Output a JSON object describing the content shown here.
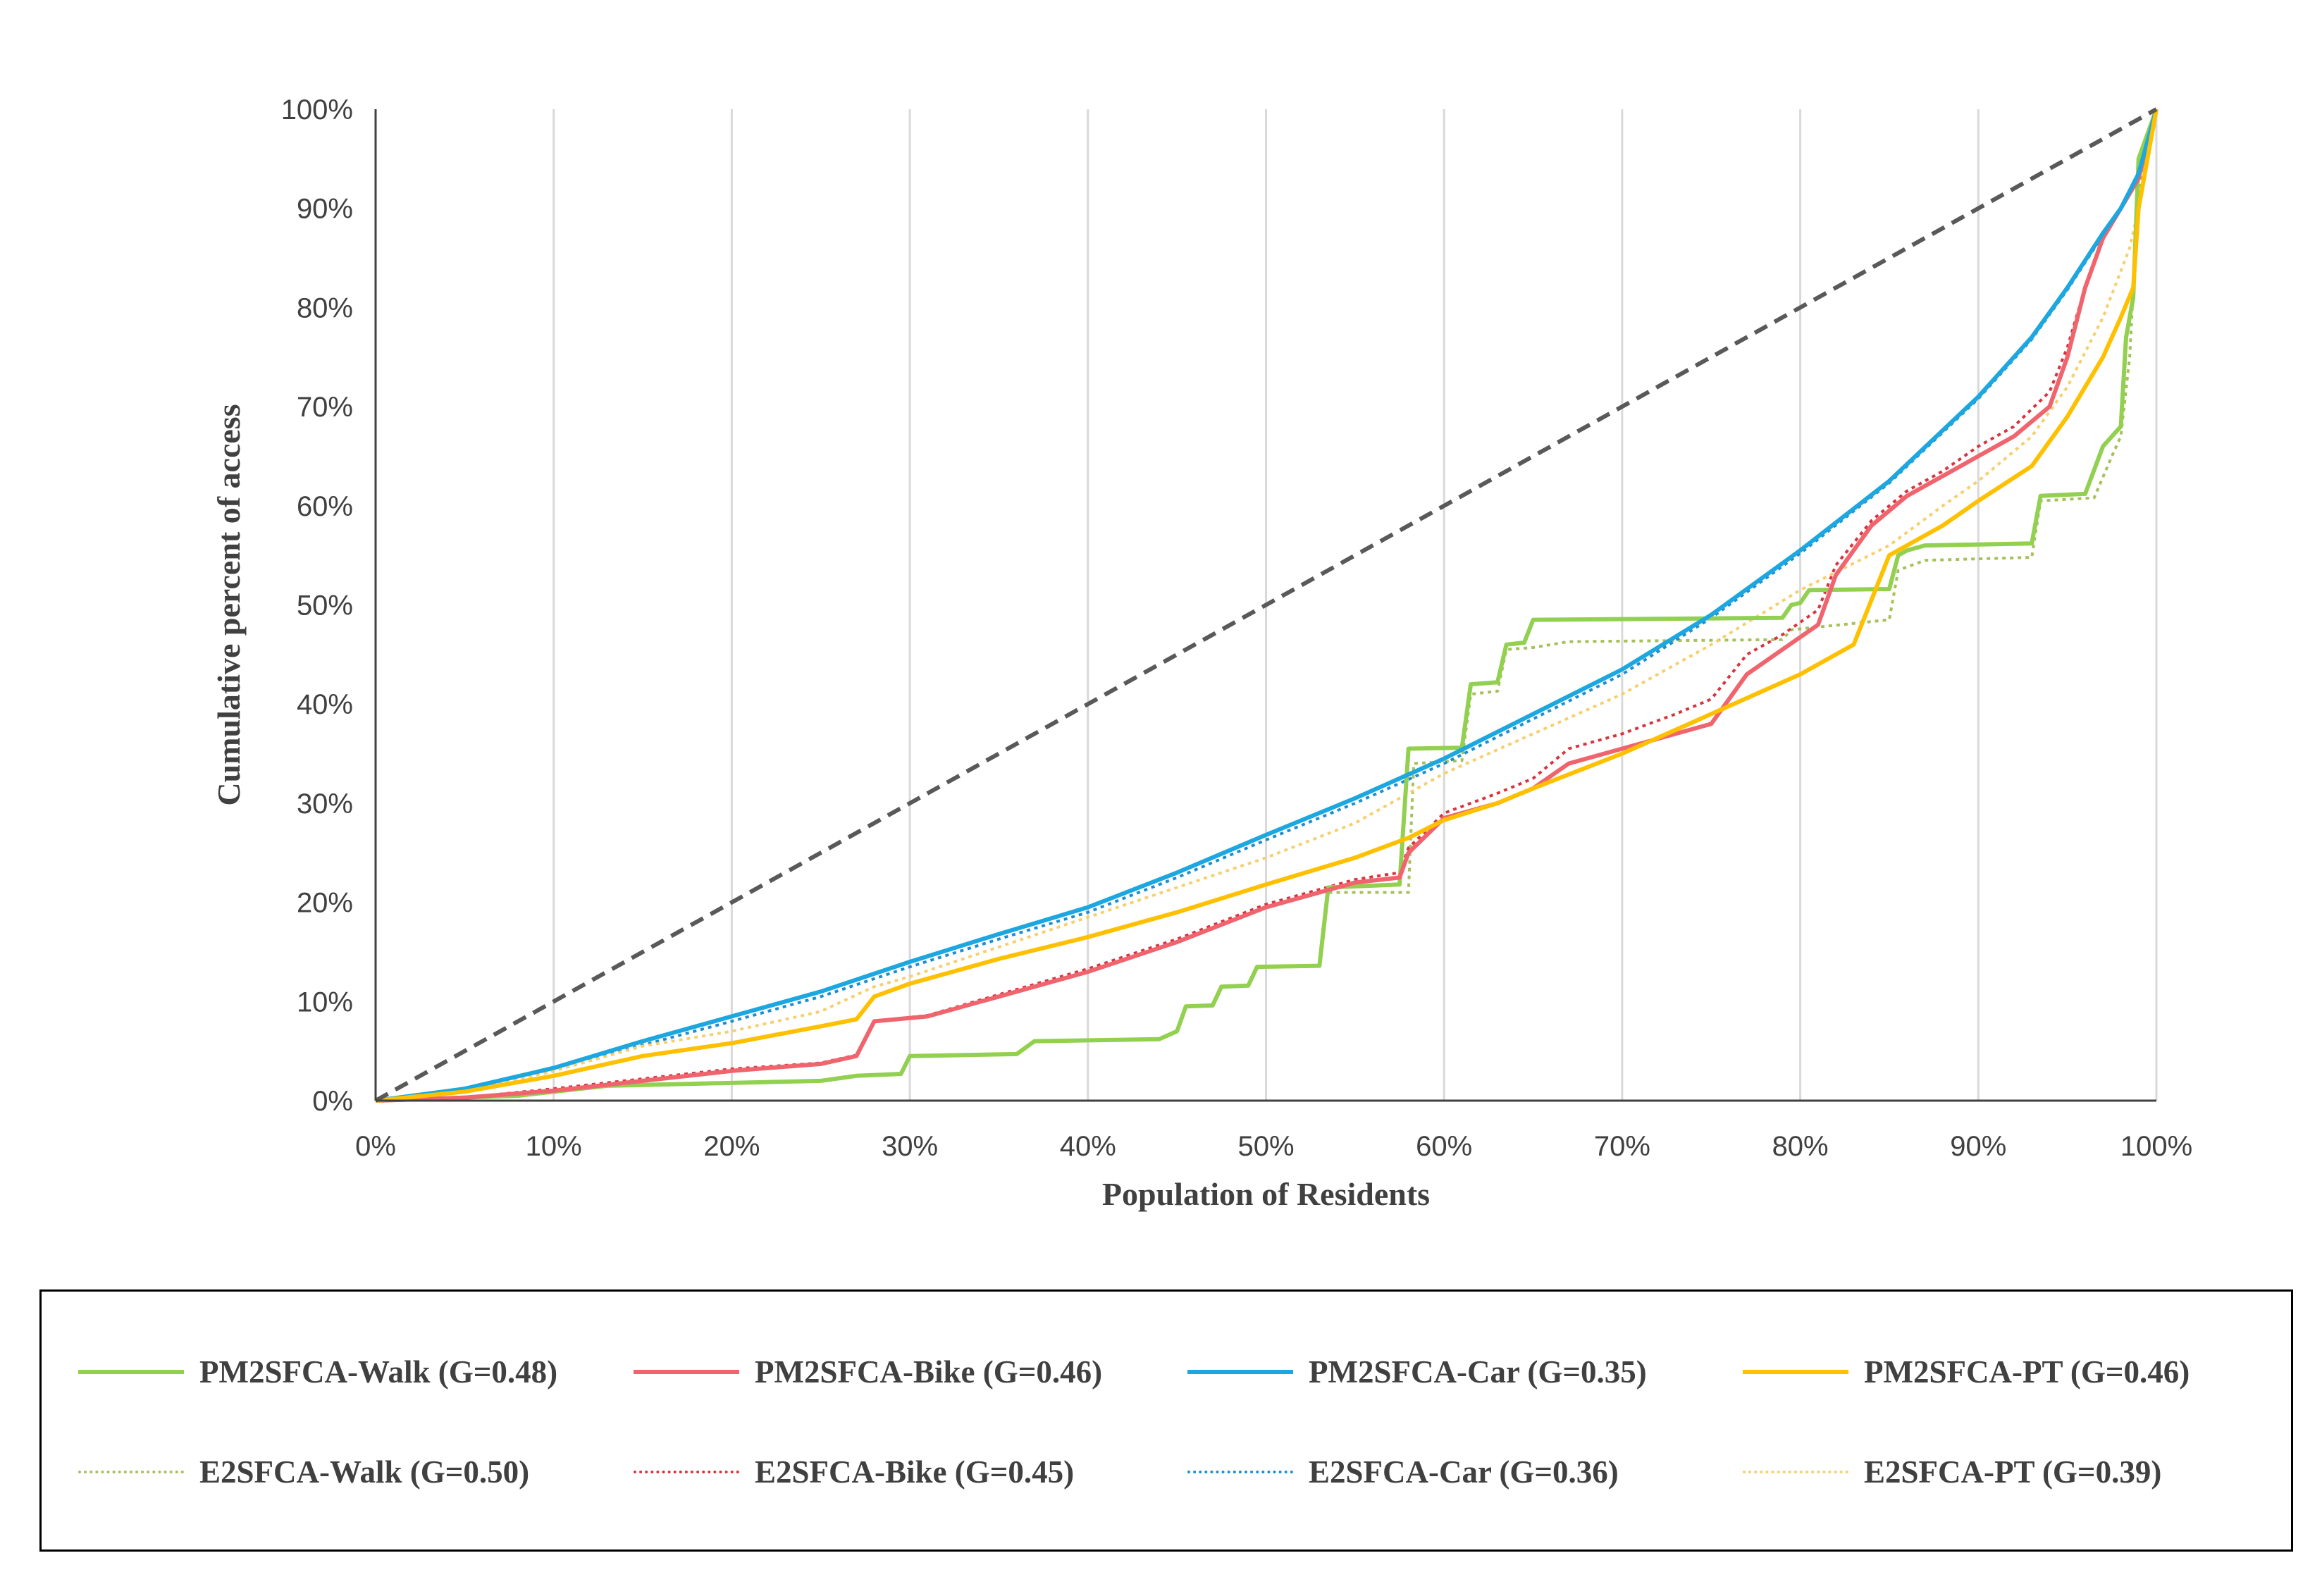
{
  "chart_data": {
    "type": "line",
    "title": "",
    "xlabel": "Population of Residents",
    "ylabel": "Cumulative percent of access",
    "xlim": [
      0,
      100
    ],
    "ylim": [
      0,
      100
    ],
    "x_ticks": [
      "0%",
      "10%",
      "20%",
      "30%",
      "40%",
      "50%",
      "60%",
      "70%",
      "80%",
      "90%",
      "100%"
    ],
    "y_ticks": [
      "0%",
      "10%",
      "20%",
      "30%",
      "40%",
      "50%",
      "60%",
      "70%",
      "80%",
      "90%",
      "100%"
    ],
    "grid": "vertical",
    "reference_line": {
      "name": "Equality line",
      "color": "#595959",
      "style": "dashed",
      "points": [
        [
          0,
          0
        ],
        [
          100,
          100
        ]
      ]
    },
    "series": [
      {
        "name": "PM2SFCA-Walk (G=0.48)",
        "color": "#92D050",
        "style": "solid",
        "points": [
          [
            0,
            0
          ],
          [
            8,
            0.5
          ],
          [
            13,
            1.5
          ],
          [
            25,
            2
          ],
          [
            27,
            2.5
          ],
          [
            29.5,
            2.7
          ],
          [
            30,
            4.5
          ],
          [
            36,
            4.7
          ],
          [
            37,
            6
          ],
          [
            44,
            6.2
          ],
          [
            45,
            7
          ],
          [
            45.5,
            9.5
          ],
          [
            47,
            9.6
          ],
          [
            47.5,
            11.5
          ],
          [
            49,
            11.6
          ],
          [
            49.5,
            13.5
          ],
          [
            53,
            13.6
          ],
          [
            53.5,
            21.5
          ],
          [
            57.5,
            21.8
          ],
          [
            58,
            35.5
          ],
          [
            61,
            35.6
          ],
          [
            61.5,
            42
          ],
          [
            63,
            42.2
          ],
          [
            63.5,
            46
          ],
          [
            64.5,
            46.2
          ],
          [
            65,
            48.5
          ],
          [
            79,
            48.7
          ],
          [
            79.5,
            50
          ],
          [
            80,
            50.2
          ],
          [
            80.5,
            51.5
          ],
          [
            85,
            51.6
          ],
          [
            85.5,
            55
          ],
          [
            86,
            55.5
          ],
          [
            87,
            56
          ],
          [
            93,
            56.2
          ],
          [
            93.5,
            61
          ],
          [
            96,
            61.2
          ],
          [
            97,
            66
          ],
          [
            98,
            68
          ],
          [
            98.3,
            77
          ],
          [
            98.7,
            81
          ],
          [
            99,
            95
          ],
          [
            100,
            100
          ]
        ]
      },
      {
        "name": "PM2SFCA-Bike (G=0.46)",
        "color": "#F0646E",
        "style": "solid",
        "points": [
          [
            0,
            0
          ],
          [
            5,
            0.3
          ],
          [
            10,
            1
          ],
          [
            15,
            2
          ],
          [
            20,
            3
          ],
          [
            25,
            3.7
          ],
          [
            27,
            4.5
          ],
          [
            28,
            8
          ],
          [
            31,
            8.5
          ],
          [
            35,
            10.5
          ],
          [
            40,
            13
          ],
          [
            45,
            16
          ],
          [
            50,
            19.5
          ],
          [
            53,
            21
          ],
          [
            55,
            22
          ],
          [
            57.5,
            22.5
          ],
          [
            58,
            25
          ],
          [
            60,
            28.5
          ],
          [
            63,
            30
          ],
          [
            65,
            31.5
          ],
          [
            67,
            34
          ],
          [
            70,
            35.5
          ],
          [
            73,
            37
          ],
          [
            75,
            38
          ],
          [
            77,
            43
          ],
          [
            79,
            45.5
          ],
          [
            81,
            48
          ],
          [
            82,
            53
          ],
          [
            84,
            58
          ],
          [
            86,
            61
          ],
          [
            88,
            63
          ],
          [
            90,
            65
          ],
          [
            92,
            67
          ],
          [
            94,
            70
          ],
          [
            95,
            75
          ],
          [
            96,
            82
          ],
          [
            97,
            87
          ],
          [
            98,
            90
          ],
          [
            99,
            93
          ],
          [
            100,
            100
          ]
        ]
      },
      {
        "name": "PM2SFCA-Car (G=0.35)",
        "color": "#1CA7E0",
        "style": "solid",
        "points": [
          [
            0,
            0
          ],
          [
            5,
            1.2
          ],
          [
            10,
            3.3
          ],
          [
            15,
            6
          ],
          [
            20,
            8.5
          ],
          [
            25,
            11
          ],
          [
            30,
            14
          ],
          [
            35,
            16.8
          ],
          [
            40,
            19.5
          ],
          [
            45,
            23
          ],
          [
            50,
            26.8
          ],
          [
            55,
            30.5
          ],
          [
            60,
            34.5
          ],
          [
            65,
            39
          ],
          [
            70,
            43.5
          ],
          [
            75,
            49
          ],
          [
            80,
            55.5
          ],
          [
            85,
            62.5
          ],
          [
            90,
            71
          ],
          [
            93,
            77
          ],
          [
            95,
            82
          ],
          [
            97,
            87.5
          ],
          [
            98,
            90
          ],
          [
            99,
            93.5
          ],
          [
            100,
            100
          ]
        ]
      },
      {
        "name": "PM2SFCA-PT (G=0.46)",
        "color": "#FFC000",
        "style": "solid",
        "points": [
          [
            0,
            0
          ],
          [
            5,
            0.9
          ],
          [
            10,
            2.5
          ],
          [
            15,
            4.5
          ],
          [
            20,
            5.8
          ],
          [
            25,
            7.5
          ],
          [
            27,
            8.2
          ],
          [
            28,
            10.5
          ],
          [
            30,
            11.8
          ],
          [
            35,
            14.3
          ],
          [
            40,
            16.5
          ],
          [
            45,
            19
          ],
          [
            50,
            21.8
          ],
          [
            55,
            24.5
          ],
          [
            58,
            26.5
          ],
          [
            60,
            28.3
          ],
          [
            63,
            30
          ],
          [
            65,
            31.5
          ],
          [
            70,
            35
          ],
          [
            75,
            39
          ],
          [
            80,
            43
          ],
          [
            83,
            46
          ],
          [
            85,
            55
          ],
          [
            88,
            58
          ],
          [
            90,
            60.5
          ],
          [
            93,
            64
          ],
          [
            95,
            69
          ],
          [
            97,
            75
          ],
          [
            98,
            79
          ],
          [
            98.7,
            82
          ],
          [
            99,
            90
          ],
          [
            100,
            100
          ]
        ]
      },
      {
        "name": "E2SFCA-Walk (G=0.50)",
        "color": "#A6C05A",
        "style": "dotted",
        "points": [
          [
            0,
            0
          ],
          [
            8,
            0.5
          ],
          [
            13,
            1.5
          ],
          [
            25,
            2
          ],
          [
            27,
            2.5
          ],
          [
            29.5,
            2.7
          ],
          [
            30,
            4.5
          ],
          [
            36,
            4.7
          ],
          [
            37,
            6
          ],
          [
            44,
            6.2
          ],
          [
            45,
            7
          ],
          [
            45.5,
            9.5
          ],
          [
            47,
            9.6
          ],
          [
            47.5,
            11.5
          ],
          [
            49,
            11.6
          ],
          [
            49.5,
            13.5
          ],
          [
            53,
            13.6
          ],
          [
            53.5,
            21
          ],
          [
            58,
            21
          ],
          [
            58.3,
            34
          ],
          [
            61,
            34.3
          ],
          [
            61.5,
            41
          ],
          [
            63,
            41.3
          ],
          [
            63.5,
            45.5
          ],
          [
            65,
            45.7
          ],
          [
            67,
            46.3
          ],
          [
            79,
            46.5
          ],
          [
            79.5,
            47.5
          ],
          [
            85,
            48.5
          ],
          [
            85.5,
            53.5
          ],
          [
            87,
            54.5
          ],
          [
            93,
            54.8
          ],
          [
            93.5,
            60.5
          ],
          [
            96.5,
            60.8
          ],
          [
            97.5,
            65
          ],
          [
            98,
            67
          ],
          [
            98.5,
            75
          ],
          [
            99,
            92
          ],
          [
            100,
            100
          ]
        ]
      },
      {
        "name": "E2SFCA-Bike (G=0.45)",
        "color": "#D9343E",
        "style": "dotted",
        "points": [
          [
            0,
            0
          ],
          [
            5,
            0.3
          ],
          [
            10,
            1.2
          ],
          [
            15,
            2.2
          ],
          [
            20,
            3.2
          ],
          [
            25,
            3.8
          ],
          [
            27,
            4.6
          ],
          [
            28,
            8
          ],
          [
            31,
            8.6
          ],
          [
            35,
            10.7
          ],
          [
            40,
            13.3
          ],
          [
            45,
            16.3
          ],
          [
            50,
            19.8
          ],
          [
            53,
            21.3
          ],
          [
            55,
            22.3
          ],
          [
            57.5,
            23
          ],
          [
            58,
            25.5
          ],
          [
            60,
            29
          ],
          [
            63,
            31
          ],
          [
            65,
            32.5
          ],
          [
            67,
            35.5
          ],
          [
            70,
            37
          ],
          [
            73,
            39
          ],
          [
            75,
            40.5
          ],
          [
            77,
            45
          ],
          [
            79,
            47
          ],
          [
            81,
            49.5
          ],
          [
            82,
            54
          ],
          [
            84,
            58.5
          ],
          [
            86,
            61.5
          ],
          [
            88,
            63.5
          ],
          [
            90,
            66
          ],
          [
            92,
            68
          ],
          [
            94,
            71.5
          ],
          [
            95,
            76
          ],
          [
            96,
            82
          ],
          [
            97,
            87
          ],
          [
            98,
            90
          ],
          [
            99,
            93
          ],
          [
            100,
            100
          ]
        ]
      },
      {
        "name": "E2SFCA-Car (G=0.36)",
        "color": "#1C8FD0",
        "style": "dotted",
        "points": [
          [
            0,
            0
          ],
          [
            5,
            1
          ],
          [
            10,
            3
          ],
          [
            15,
            5.6
          ],
          [
            20,
            8
          ],
          [
            25,
            10.5
          ],
          [
            30,
            13.5
          ],
          [
            35,
            16.3
          ],
          [
            40,
            19
          ],
          [
            45,
            22.5
          ],
          [
            50,
            26.3
          ],
          [
            55,
            30
          ],
          [
            60,
            34
          ],
          [
            65,
            38.5
          ],
          [
            70,
            43
          ],
          [
            75,
            48.7
          ],
          [
            80,
            55.2
          ],
          [
            85,
            62.3
          ],
          [
            90,
            70.8
          ],
          [
            93,
            76.8
          ],
          [
            95,
            81.8
          ],
          [
            97,
            87.3
          ],
          [
            98,
            90
          ],
          [
            99,
            93.5
          ],
          [
            100,
            100
          ]
        ]
      },
      {
        "name": "E2SFCA-PT (G=0.39)",
        "color": "#F5D070",
        "style": "dotted",
        "points": [
          [
            0,
            0
          ],
          [
            5,
            1
          ],
          [
            10,
            3
          ],
          [
            15,
            5.5
          ],
          [
            20,
            7
          ],
          [
            25,
            9
          ],
          [
            28,
            11.5
          ],
          [
            30,
            12.5
          ],
          [
            35,
            15.5
          ],
          [
            40,
            18.5
          ],
          [
            45,
            21.5
          ],
          [
            50,
            24.5
          ],
          [
            55,
            28
          ],
          [
            58,
            31
          ],
          [
            60,
            33
          ],
          [
            65,
            37
          ],
          [
            70,
            41
          ],
          [
            75,
            46
          ],
          [
            80,
            51.5
          ],
          [
            85,
            56
          ],
          [
            88,
            60
          ],
          [
            90,
            62.5
          ],
          [
            93,
            67
          ],
          [
            95,
            72
          ],
          [
            97,
            79
          ],
          [
            98.5,
            86
          ],
          [
            99,
            90
          ],
          [
            100,
            100
          ]
        ]
      }
    ],
    "legend": {
      "position": "bottom",
      "entries": [
        "PM2SFCA-Walk (G=0.48)",
        "PM2SFCA-Bike (G=0.46)",
        "PM2SFCA-Car (G=0.35)",
        "PM2SFCA-PT (G=0.46)",
        "E2SFCA-Walk (G=0.50)",
        "E2SFCA-Bike (G=0.45)",
        "E2SFCA-Car (G=0.36)",
        "E2SFCA-PT (G=0.39)"
      ]
    }
  }
}
